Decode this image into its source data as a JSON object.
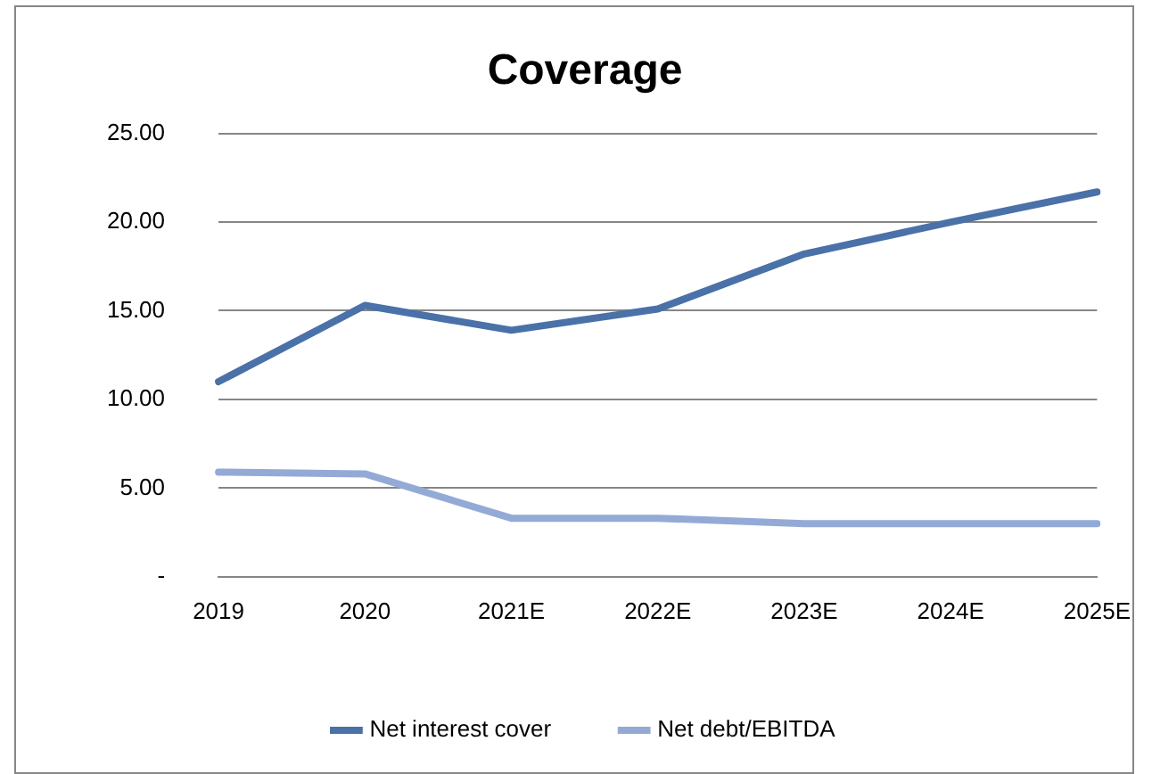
{
  "chart_data": {
    "type": "line",
    "title": "Coverage",
    "categories": [
      "2019",
      "2020",
      "2021E",
      "2022E",
      "2023E",
      "2024E",
      "2025E"
    ],
    "series": [
      {
        "name": "Net interest cover",
        "color": "#4a71a8",
        "values": [
          11.0,
          15.3,
          13.9,
          15.1,
          18.2,
          20.0,
          21.7
        ]
      },
      {
        "name": "Net debt/EBITDA",
        "color": "#94aad6",
        "values": [
          5.9,
          5.8,
          3.3,
          3.3,
          3.0,
          3.0,
          3.0
        ]
      }
    ],
    "ylim": [
      0,
      25
    ],
    "yticks": [
      {
        "value": 0,
        "label": "-"
      },
      {
        "value": 5,
        "label": "5.00"
      },
      {
        "value": 10,
        "label": "10.00"
      },
      {
        "value": 15,
        "label": "15.00"
      },
      {
        "value": 20,
        "label": "20.00"
      },
      {
        "value": 25,
        "label": "25.00"
      }
    ],
    "grid": "y",
    "legend": "bottom",
    "marker": "none",
    "line_style": "solid"
  }
}
